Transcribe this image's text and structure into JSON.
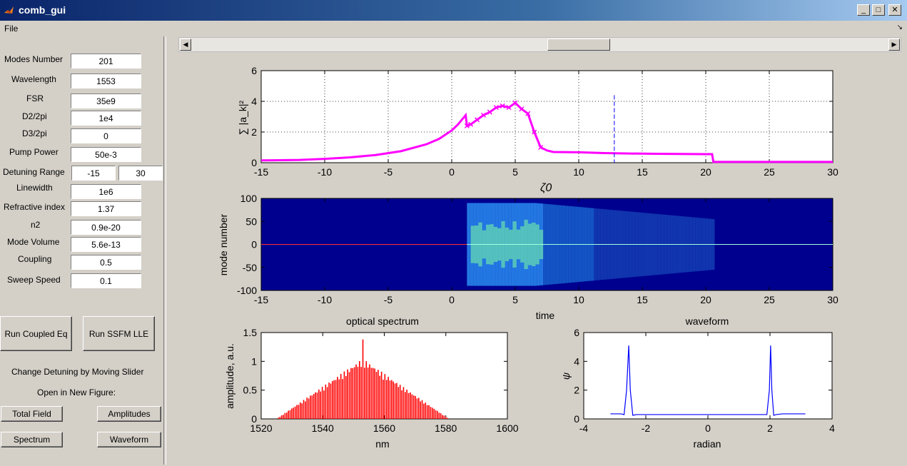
{
  "window": {
    "title": "comb_gui",
    "minimize": "_",
    "maximize": "□",
    "close": "✕"
  },
  "menu": {
    "file": "File",
    "corner": "↘"
  },
  "params": [
    {
      "label": "Modes Number",
      "value": "201"
    },
    {
      "label": "Wavelength",
      "value": "1553"
    },
    {
      "label": "FSR",
      "value": "35e9"
    },
    {
      "label": "D2/2pi",
      "value": "1e4"
    },
    {
      "label": "D3/2pi",
      "value": "0"
    },
    {
      "label": "Pump Power",
      "value": "50e-3"
    },
    {
      "label": "Detuning Range",
      "value": "-15",
      "value2": "30"
    },
    {
      "label": "Linewidth",
      "value": "1e6"
    },
    {
      "label": "Refractive index",
      "value": "1.37"
    },
    {
      "label": "n2",
      "value": "0.9e-20"
    },
    {
      "label": "Mode Volume",
      "value": "5.6e-13"
    },
    {
      "label": "Coupling",
      "value": "0.5"
    },
    {
      "label": "Sweep Speed",
      "value": "0.1"
    }
  ],
  "buttons": {
    "run_coupled": "Run Coupled Eq",
    "run_ssfm": "Run SSFM LLE",
    "total_field": "Total Field",
    "amplitudes": "Amplitudes",
    "spectrum": "Spectrum",
    "waveform": "Waveform"
  },
  "texts": {
    "change_detuning": "Change Detuning by Moving Slider",
    "open_new_figure": "Open in New Figure:"
  },
  "slider": {
    "value_fraction": 0.56
  },
  "colors": {
    "magenta": "#ff00ff",
    "red": "#ff0000",
    "blue": "#0000ff",
    "heatmap_bg": "#00008f"
  },
  "chart_data": [
    {
      "type": "line",
      "title": "",
      "xlabel": "ζ0",
      "ylabel": "∑ |a_k|²",
      "xlim": [
        -15,
        30
      ],
      "ylim": [
        0,
        6
      ],
      "xticks": [
        "-15",
        "-10",
        "-5",
        "0",
        "5",
        "10",
        "15",
        "20",
        "25",
        "30"
      ],
      "yticks": [
        "0",
        "2",
        "4",
        "6"
      ],
      "series": [
        {
          "name": "total field",
          "color": "#ff00ff",
          "x": [
            -15,
            -12,
            -10,
            -8,
            -6,
            -4,
            -2,
            -1,
            0,
            0.5,
            1.1,
            1.2,
            1.5,
            2,
            2.5,
            3,
            3.5,
            4,
            4.5,
            5,
            5.5,
            6,
            6.5,
            7,
            7.5,
            8,
            10,
            12,
            14,
            16,
            18,
            20,
            20.5,
            20.6,
            22,
            25,
            28,
            30
          ],
          "y": [
            0.15,
            0.18,
            0.25,
            0.35,
            0.5,
            0.75,
            1.2,
            1.55,
            2.1,
            2.5,
            3.1,
            2.4,
            2.5,
            2.8,
            3.1,
            3.3,
            3.6,
            3.7,
            3.6,
            3.9,
            3.5,
            3.2,
            2.0,
            1.0,
            0.8,
            0.7,
            0.68,
            0.63,
            0.6,
            0.58,
            0.57,
            0.56,
            0.56,
            0.05,
            0.05,
            0.05,
            0.05,
            0.05
          ]
        }
      ],
      "marker_x": 12.8
    },
    {
      "type": "heatmap",
      "title": "",
      "xlabel": "time",
      "ylabel": "mode number",
      "xlim": [
        -15,
        30
      ],
      "ylim": [
        -100,
        100
      ],
      "xticks": [
        "-15",
        "-10",
        "-5",
        "0",
        "5",
        "10",
        "15",
        "20",
        "25",
        "30"
      ],
      "yticks": [
        "-100",
        "-50",
        "0",
        "50",
        "100"
      ]
    },
    {
      "type": "bar",
      "title": "optical spectrum",
      "xlabel": "nm",
      "ylabel": "amplitude, a.u.",
      "xlim": [
        1520,
        1600
      ],
      "ylim": [
        0,
        1.5
      ],
      "xticks": [
        "1520",
        "1540",
        "1560",
        "1580",
        "1600"
      ],
      "yticks": [
        "0",
        "0.5",
        "1",
        "1.5"
      ],
      "center": 1553,
      "half_width": 28,
      "peak": 1.38,
      "color": "#ff0000"
    },
    {
      "type": "line",
      "title": "waveform",
      "xlabel": "radian",
      "ylabel": "ψ",
      "xlim": [
        -4,
        4
      ],
      "ylim": [
        0,
        6
      ],
      "xticks": [
        "-4",
        "-2",
        "0",
        "2",
        "4"
      ],
      "yticks": [
        "0",
        "2",
        "4",
        "6"
      ],
      "series": [
        {
          "name": "waveform",
          "color": "#0000ff",
          "x": [
            -3.14,
            -2.8,
            -2.7,
            -2.62,
            -2.55,
            -2.5,
            -2.42,
            -2.3,
            0,
            1.9,
            1.98,
            2.02,
            2.06,
            2.12,
            2.2,
            2.4,
            3.14
          ],
          "y": [
            0.35,
            0.35,
            0.3,
            2.0,
            5.1,
            2.0,
            0.25,
            0.3,
            0.3,
            0.3,
            2.0,
            5.1,
            2.0,
            0.25,
            0.3,
            0.35,
            0.35
          ]
        }
      ]
    }
  ]
}
